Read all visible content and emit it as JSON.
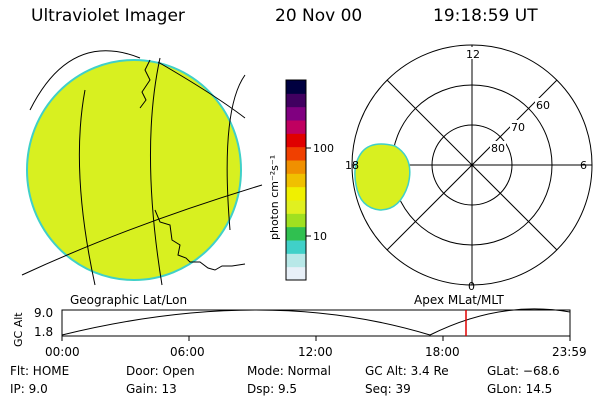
{
  "header": {
    "instrument": "Ultraviolet Imager",
    "date": "20 Nov 00",
    "time": "19:18:59 UT"
  },
  "colorbar": {
    "unit_label": "photon cm⁻²s⁻¹",
    "tick_100": "100",
    "tick_10": "10",
    "colors": [
      "#e8f0f8",
      "#b8e8e8",
      "#40d0c8",
      "#30c050",
      "#a0e020",
      "#e0f020",
      "#f0f000",
      "#f0c000",
      "#f09000",
      "#f04000",
      "#e00000",
      "#c00060",
      "#800080",
      "#400060",
      "#000040"
    ]
  },
  "left_panel": {
    "caption": "Geographic Lat/Lon",
    "fill_color": "#d8f020",
    "edge_color": "#40d0c8"
  },
  "right_panel": {
    "caption": "Apex MLat/MLT",
    "mlt_labels": {
      "top": "12",
      "left": "18",
      "right": "6",
      "bottom": "0"
    },
    "lat_labels": [
      "60",
      "70",
      "80"
    ]
  },
  "altitude_plot": {
    "ylabel": "GC Alt",
    "ymax_label": "9.0",
    "ymin_label": "1.8",
    "time_labels": [
      "00:00",
      "06:00",
      "12:00",
      "18:00",
      "23:59"
    ],
    "current_time_color": "#e00000"
  },
  "info": {
    "flt": "Flt: HOME",
    "door": "Door: Open",
    "mode": "Mode: Normal",
    "gc_alt": "GC Alt: 3.4 Re",
    "glat": "GLat: −68.6",
    "ip": "IP: 9.0",
    "gain": "Gain: 13",
    "dsp": "Dsp:   9.5",
    "seq": "Seq: 39",
    "glon": "GLon:  14.5"
  }
}
